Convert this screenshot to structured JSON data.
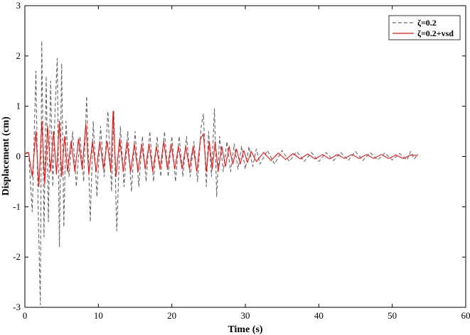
{
  "chart_data": {
    "type": "line",
    "title": "",
    "xlabel": "Time (s)",
    "ylabel": "Displacement (cm)",
    "xlim": [
      0,
      60
    ],
    "ylim": [
      -3,
      3
    ],
    "xticks": [
      0,
      10,
      20,
      30,
      40,
      50,
      60
    ],
    "yticks": [
      -3,
      -2,
      -1,
      0,
      1,
      2,
      3
    ],
    "grid": false,
    "legend_position": "top-right",
    "series": [
      {
        "name": "ζ=0.2",
        "color": "#666666",
        "dash": "dashed",
        "points": [
          [
            0,
            0.05
          ],
          [
            0.5,
            0.1
          ],
          [
            1.0,
            -1.1
          ],
          [
            1.5,
            1.7
          ],
          [
            1.8,
            -1.0
          ],
          [
            2.1,
            -2.95
          ],
          [
            2.3,
            2.3
          ],
          [
            2.6,
            -1.6
          ],
          [
            2.9,
            1.6
          ],
          [
            3.2,
            -1.3
          ],
          [
            3.5,
            1.5
          ],
          [
            3.8,
            -0.6
          ],
          [
            4.1,
            0.9
          ],
          [
            4.4,
            1.95
          ],
          [
            4.7,
            -1.8
          ],
          [
            5.0,
            1.85
          ],
          [
            5.3,
            -1.4
          ],
          [
            5.6,
            0.7
          ],
          [
            6.0,
            -0.4
          ],
          [
            6.5,
            0.5
          ],
          [
            7.0,
            -0.6
          ],
          [
            7.5,
            0.4
          ],
          [
            8.0,
            -0.5
          ],
          [
            8.4,
            1.2
          ],
          [
            8.9,
            -1.3
          ],
          [
            9.3,
            0.7
          ],
          [
            9.8,
            -0.8
          ],
          [
            10.3,
            0.6
          ],
          [
            10.8,
            -0.4
          ],
          [
            11.3,
            0.9
          ],
          [
            11.8,
            -0.7
          ],
          [
            12.1,
            0.9
          ],
          [
            12.5,
            -1.48
          ],
          [
            13.0,
            0.6
          ],
          [
            13.5,
            -0.6
          ],
          [
            14.0,
            0.5
          ],
          [
            14.5,
            -0.7
          ],
          [
            15.0,
            0.5
          ],
          [
            15.5,
            -0.6
          ],
          [
            16.0,
            0.4
          ],
          [
            16.5,
            -0.5
          ],
          [
            17.0,
            0.5
          ],
          [
            17.5,
            -0.5
          ],
          [
            18.0,
            0.4
          ],
          [
            18.5,
            -0.4
          ],
          [
            19.0,
            0.5
          ],
          [
            19.5,
            -0.4
          ],
          [
            20.0,
            0.4
          ],
          [
            20.5,
            -0.5
          ],
          [
            21.0,
            0.4
          ],
          [
            21.5,
            -0.4
          ],
          [
            22.0,
            0.4
          ],
          [
            22.5,
            -0.4
          ],
          [
            23.0,
            0.3
          ],
          [
            23.5,
            -0.5
          ],
          [
            24.0,
            0.6
          ],
          [
            24.3,
            0.85
          ],
          [
            24.7,
            -0.6
          ],
          [
            25.0,
            0.5
          ],
          [
            25.4,
            -0.4
          ],
          [
            25.8,
            0.95
          ],
          [
            26.1,
            -0.8
          ],
          [
            26.5,
            0.4
          ],
          [
            27.0,
            -0.3
          ],
          [
            27.5,
            0.3
          ],
          [
            28.0,
            -0.3
          ],
          [
            28.5,
            0.25
          ],
          [
            29.0,
            -0.25
          ],
          [
            29.5,
            0.2
          ],
          [
            30.0,
            -0.25
          ],
          [
            30.5,
            0.2
          ],
          [
            31.0,
            -0.2
          ],
          [
            31.5,
            0.15
          ],
          [
            32.0,
            -0.15
          ],
          [
            33.0,
            0.12
          ],
          [
            34.0,
            -0.15
          ],
          [
            35.0,
            0.12
          ],
          [
            36.0,
            -0.1
          ],
          [
            37.0,
            0.1
          ],
          [
            38.0,
            -0.1
          ],
          [
            39.0,
            0.08
          ],
          [
            40.0,
            -0.1
          ],
          [
            41.0,
            0.08
          ],
          [
            42.0,
            -0.08
          ],
          [
            43.0,
            0.08
          ],
          [
            44.0,
            -0.08
          ],
          [
            45.0,
            0.1
          ],
          [
            46.0,
            -0.08
          ],
          [
            47.0,
            0.08
          ],
          [
            48.0,
            -0.07
          ],
          [
            49.0,
            0.07
          ],
          [
            50.0,
            -0.07
          ],
          [
            51.0,
            0.06
          ],
          [
            52.0,
            -0.07
          ],
          [
            52.5,
            0.1
          ],
          [
            53.0,
            -0.05
          ],
          [
            53.5,
            0.05
          ]
        ]
      },
      {
        "name": "ζ=0.2+vsd",
        "color": "#ee1111",
        "dash": "solid",
        "points": [
          [
            0,
            0.05
          ],
          [
            0.5,
            0.08
          ],
          [
            1.0,
            -0.4
          ],
          [
            1.5,
            0.5
          ],
          [
            1.9,
            -0.6
          ],
          [
            2.3,
            0.7
          ],
          [
            2.7,
            -0.55
          ],
          [
            3.1,
            0.6
          ],
          [
            3.5,
            -0.3
          ],
          [
            3.9,
            0.5
          ],
          [
            4.3,
            -0.35
          ],
          [
            4.7,
            0.7
          ],
          [
            5.0,
            -0.4
          ],
          [
            5.4,
            0.4
          ],
          [
            5.8,
            -0.3
          ],
          [
            6.3,
            0.3
          ],
          [
            6.8,
            -0.3
          ],
          [
            7.3,
            0.35
          ],
          [
            7.8,
            -0.25
          ],
          [
            8.3,
            0.65
          ],
          [
            8.7,
            -0.35
          ],
          [
            9.2,
            0.3
          ],
          [
            9.7,
            -0.3
          ],
          [
            10.2,
            0.3
          ],
          [
            10.7,
            -0.25
          ],
          [
            11.2,
            0.3
          ],
          [
            11.7,
            -0.3
          ],
          [
            12.0,
            0.9
          ],
          [
            12.4,
            -0.4
          ],
          [
            12.9,
            0.35
          ],
          [
            13.4,
            -0.3
          ],
          [
            13.9,
            0.3
          ],
          [
            14.4,
            -0.3
          ],
          [
            14.9,
            0.25
          ],
          [
            15.4,
            -0.3
          ],
          [
            15.9,
            0.25
          ],
          [
            16.4,
            -0.25
          ],
          [
            16.9,
            0.25
          ],
          [
            17.4,
            -0.3
          ],
          [
            17.9,
            0.2
          ],
          [
            18.4,
            -0.25
          ],
          [
            18.9,
            0.3
          ],
          [
            19.4,
            -0.25
          ],
          [
            19.9,
            0.25
          ],
          [
            20.4,
            -0.25
          ],
          [
            20.9,
            0.2
          ],
          [
            21.4,
            -0.25
          ],
          [
            21.9,
            0.2
          ],
          [
            22.4,
            -0.25
          ],
          [
            22.9,
            0.2
          ],
          [
            23.4,
            -0.3
          ],
          [
            23.9,
            0.35
          ],
          [
            24.3,
            0.45
          ],
          [
            24.7,
            -0.3
          ],
          [
            25.1,
            0.3
          ],
          [
            25.5,
            -0.25
          ],
          [
            25.9,
            0.3
          ],
          [
            26.3,
            -0.3
          ],
          [
            26.8,
            0.2
          ],
          [
            27.3,
            -0.2
          ],
          [
            27.8,
            0.2
          ],
          [
            28.3,
            -0.15
          ],
          [
            28.8,
            0.15
          ],
          [
            29.3,
            -0.15
          ],
          [
            29.8,
            0.12
          ],
          [
            30.3,
            -0.12
          ],
          [
            30.8,
            0.1
          ],
          [
            31.5,
            -0.1
          ],
          [
            32.5,
            0.08
          ],
          [
            33.5,
            -0.08
          ],
          [
            34.5,
            0.07
          ],
          [
            35.5,
            -0.06
          ],
          [
            36.5,
            0.06
          ],
          [
            37.5,
            -0.05
          ],
          [
            38.5,
            0.05
          ],
          [
            39.5,
            -0.05
          ],
          [
            40.5,
            0.04
          ],
          [
            41.5,
            -0.05
          ],
          [
            42.5,
            0.04
          ],
          [
            43.5,
            -0.04
          ],
          [
            44.5,
            0.04
          ],
          [
            45.5,
            -0.04
          ],
          [
            46.5,
            0.04
          ],
          [
            47.5,
            -0.04
          ],
          [
            48.5,
            0.04
          ],
          [
            49.5,
            -0.04
          ],
          [
            50.5,
            0.03
          ],
          [
            51.5,
            -0.04
          ],
          [
            52.5,
            0.03
          ],
          [
            53.5,
            0.02
          ]
        ]
      }
    ]
  }
}
